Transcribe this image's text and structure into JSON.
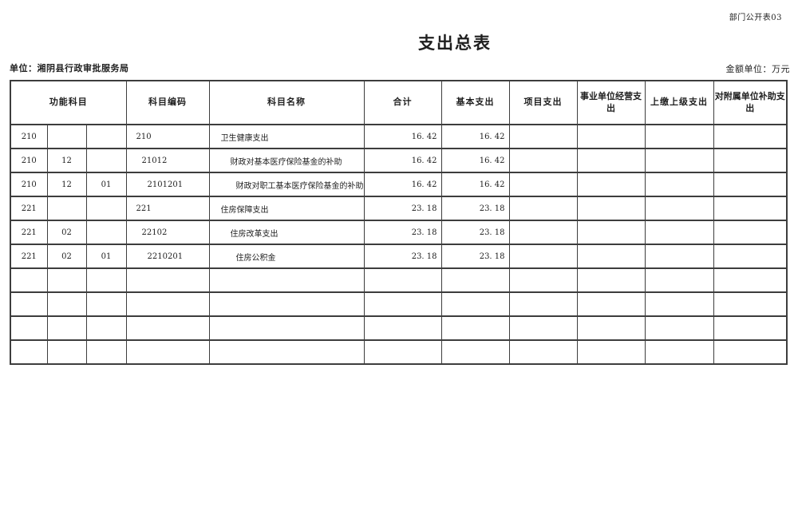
{
  "page": {
    "doc_code": "部门公开表03",
    "title": "支出总表",
    "unit_line": "单位：湘阴县行政审批服务局",
    "amount_unit_line": "金额单位：万元",
    "colors": {
      "text": "#1f1f1f",
      "border": "#3d3d3d",
      "background": "#ffffff"
    }
  },
  "table": {
    "headers": {
      "functional_subject": "功能科目",
      "subject_code": "科目编码",
      "subject_name": "科目名称",
      "total": "合计",
      "basic_expenditure": "基本支出",
      "project_expenditure": "项目支出",
      "business_expenditure": "事业单位经营支出",
      "upper_level_expenditure": "上缴上级支出",
      "affiliated_subsidy_expenditure": "对附属单位补助支出"
    },
    "rows": [
      {
        "func_class": "210",
        "func_sub": "",
        "func_item": "",
        "code": "210",
        "name": "卫生健康支出",
        "level": 1,
        "total": "16. 42",
        "basic": "16. 42",
        "project": "",
        "business": "",
        "upper": "",
        "affiliated": ""
      },
      {
        "func_class": "210",
        "func_sub": "12",
        "func_item": "",
        "code": "21012",
        "name": "财政对基本医疗保险基金的补助",
        "level": 2,
        "total": "16. 42",
        "basic": "16. 42",
        "project": "",
        "business": "",
        "upper": "",
        "affiliated": ""
      },
      {
        "func_class": "210",
        "func_sub": "12",
        "func_item": "01",
        "code": "2101201",
        "name": "财政对职工基本医疗保险基金的补助",
        "level": 3,
        "total": "16. 42",
        "basic": "16. 42",
        "project": "",
        "business": "",
        "upper": "",
        "affiliated": ""
      },
      {
        "func_class": "221",
        "func_sub": "",
        "func_item": "",
        "code": "221",
        "name": "住房保障支出",
        "level": 1,
        "total": "23. 18",
        "basic": "23. 18",
        "project": "",
        "business": "",
        "upper": "",
        "affiliated": ""
      },
      {
        "func_class": "221",
        "func_sub": "02",
        "func_item": "",
        "code": "22102",
        "name": "住房改革支出",
        "level": 2,
        "total": "23. 18",
        "basic": "23. 18",
        "project": "",
        "business": "",
        "upper": "",
        "affiliated": ""
      },
      {
        "func_class": "221",
        "func_sub": "02",
        "func_item": "01",
        "code": "2210201",
        "name": "住房公积金",
        "level": 3,
        "total": "23. 18",
        "basic": "23. 18",
        "project": "",
        "business": "",
        "upper": "",
        "affiliated": ""
      }
    ],
    "empty_row_count": 4
  }
}
